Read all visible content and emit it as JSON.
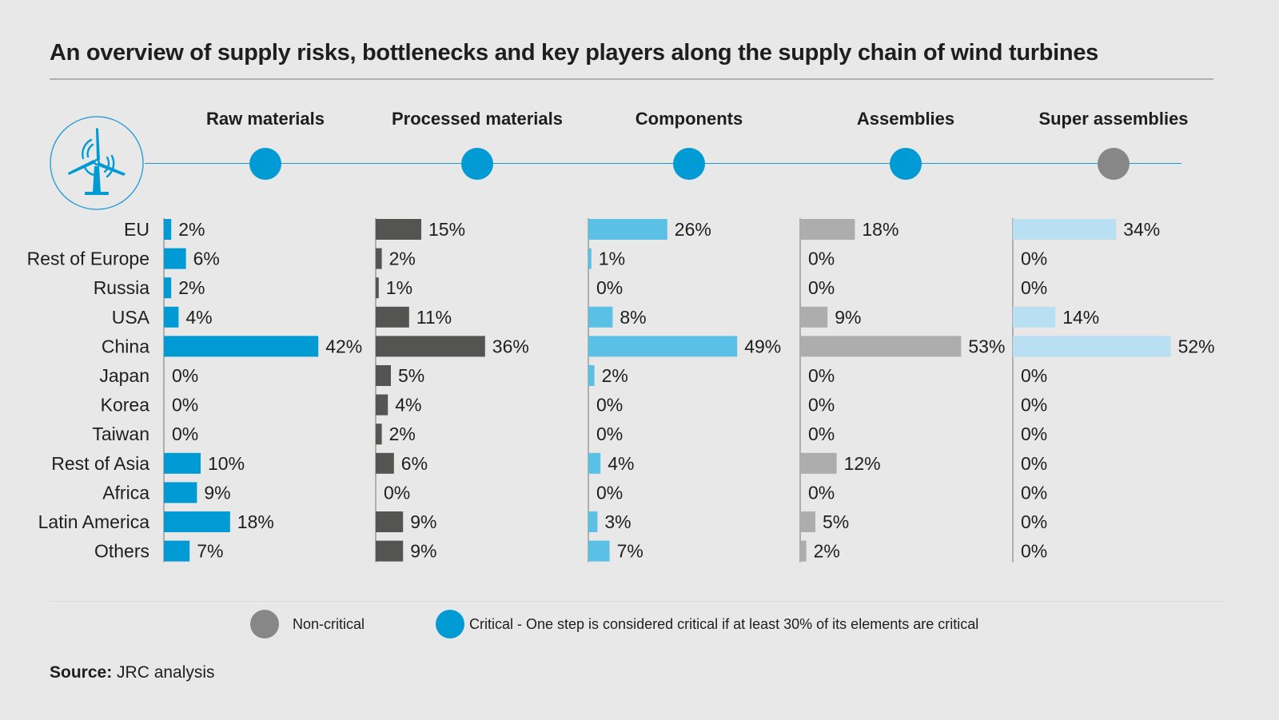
{
  "title": "An overview of supply risks, bottlenecks and key players along the supply chain of wind turbines",
  "icon": "wind-turbine-icon",
  "colors": {
    "critical": "#009ad4",
    "non_critical": "#878787",
    "timeline": "#1a9ad6",
    "raw_materials_bar": "#009ad4",
    "processed_materials_bar": "#545452",
    "components_bar": "#5bc0e6",
    "assemblies_bar": "#adadad",
    "super_assemblies_bar": "#b8dff2"
  },
  "steps": [
    {
      "label": "Raw materials",
      "status": "critical"
    },
    {
      "label": "Processed materials",
      "status": "critical"
    },
    {
      "label": "Components",
      "status": "critical"
    },
    {
      "label": "Assemblies",
      "status": "critical"
    },
    {
      "label": "Super assemblies",
      "status": "non-critical"
    }
  ],
  "legend": {
    "non_critical": "Non-critical",
    "critical": "Critical - One step is considered critical if at least 30% of its elements are critical"
  },
  "source": {
    "label": "Source:",
    "text": " JRC analysis"
  },
  "chart_data": {
    "type": "bar",
    "orientation": "horizontal",
    "title": "An overview of supply risks, bottlenecks and key players along the supply chain of wind turbines",
    "categories": [
      "EU",
      "Rest of Europe",
      "Russia",
      "USA",
      "China",
      "Japan",
      "Korea",
      "Taiwan",
      "Rest of Asia",
      "Africa",
      "Latin America",
      "Others"
    ],
    "unit": "%",
    "series": [
      {
        "name": "Raw materials",
        "values": [
          2,
          6,
          2,
          4,
          42,
          0,
          0,
          0,
          10,
          9,
          18,
          7
        ]
      },
      {
        "name": "Processed materials",
        "values": [
          15,
          2,
          1,
          11,
          36,
          5,
          4,
          2,
          6,
          0,
          9,
          9
        ]
      },
      {
        "name": "Components",
        "values": [
          26,
          1,
          0,
          8,
          49,
          2,
          0,
          0,
          4,
          0,
          3,
          7
        ]
      },
      {
        "name": "Assemblies",
        "values": [
          18,
          0,
          0,
          9,
          53,
          0,
          0,
          0,
          12,
          0,
          5,
          2
        ]
      },
      {
        "name": "Super assemblies",
        "values": [
          34,
          0,
          0,
          14,
          52,
          0,
          0,
          0,
          0,
          0,
          0,
          0
        ]
      }
    ],
    "xlabel": "",
    "ylabel": "",
    "grid": false,
    "legend": "bottom"
  }
}
